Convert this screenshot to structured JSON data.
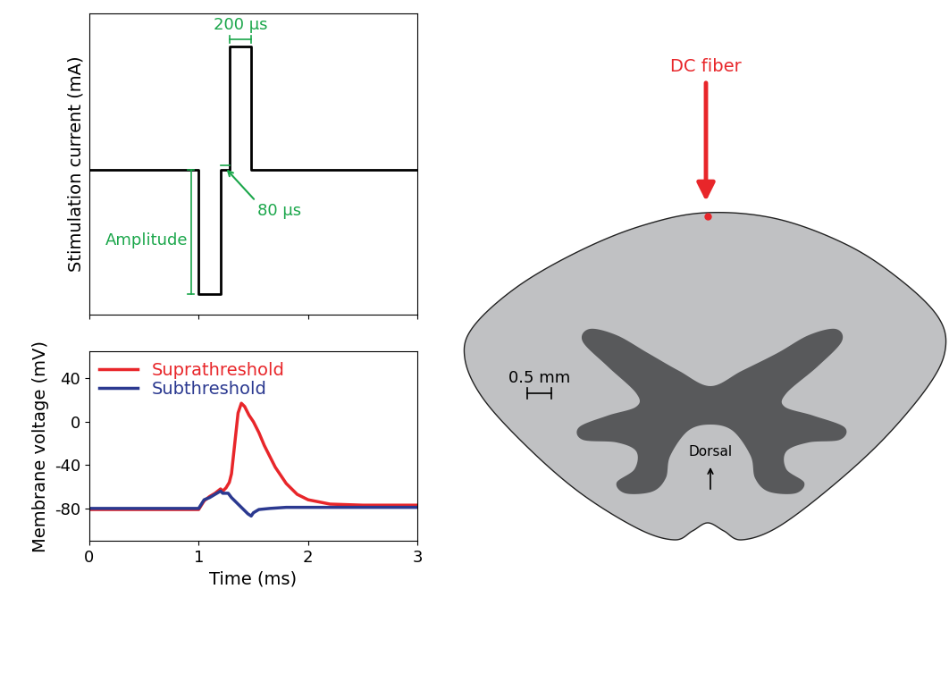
{
  "chart_data": [
    {
      "type": "line",
      "ylabel": "Stimulation current (mA)",
      "x": [
        0,
        1,
        1,
        1.2,
        1.2,
        1.28,
        1.28,
        1.48,
        1.48,
        3
      ],
      "values": [
        0,
        0,
        -1,
        -1,
        0,
        0,
        1,
        1,
        0,
        0
      ],
      "color": "#000000",
      "xlim": [
        0,
        3
      ],
      "xticks": [
        0,
        1,
        2,
        3
      ],
      "ylim": [
        -1.17,
        1.27
      ],
      "yticks": [],
      "tick_labels": false,
      "annotations": [
        "200 µs",
        "80 µs",
        "Amplitude"
      ]
    },
    {
      "type": "line",
      "xlabel": "Time (ms)",
      "ylabel": "Membrane voltage (mV)",
      "xlim": [
        0,
        3
      ],
      "xticks": [
        0,
        1,
        2,
        3
      ],
      "ylim": [
        -110,
        65
      ],
      "yticks": [
        -80,
        -40,
        0,
        40
      ],
      "legend": "upper left",
      "series": [
        {
          "name": "Suprathreshold",
          "color": "#e8262a",
          "x": [
            0,
            1.0,
            1.05,
            1.1,
            1.15,
            1.2,
            1.22,
            1.25,
            1.28,
            1.3,
            1.33,
            1.36,
            1.39,
            1.42,
            1.46,
            1.5,
            1.55,
            1.6,
            1.7,
            1.8,
            1.9,
            2.0,
            2.2,
            2.5,
            3.0
          ],
          "values": [
            -81,
            -81,
            -73,
            -69,
            -66,
            -62,
            -64,
            -61,
            -56,
            -48,
            -20,
            8,
            17,
            14,
            6,
            0,
            -10,
            -22,
            -42,
            -57,
            -67,
            -72,
            -76,
            -77,
            -77
          ]
        },
        {
          "name": "Subthreshold",
          "color": "#2b3990",
          "x": [
            0,
            1.0,
            1.05,
            1.1,
            1.15,
            1.2,
            1.22,
            1.24,
            1.27,
            1.3,
            1.35,
            1.4,
            1.45,
            1.48,
            1.5,
            1.55,
            1.65,
            1.8,
            2.0,
            3.0
          ],
          "values": [
            -80,
            -80,
            -72,
            -70,
            -67,
            -64,
            -66,
            -66,
            -66,
            -70,
            -75,
            -80,
            -85,
            -87,
            -84,
            -81,
            -80,
            -79,
            -79,
            -79
          ]
        }
      ]
    }
  ],
  "diagram": {
    "fiber_label": "DC fiber",
    "scale_bar": "0.5 mm",
    "orientation_label": "Dorsal"
  }
}
